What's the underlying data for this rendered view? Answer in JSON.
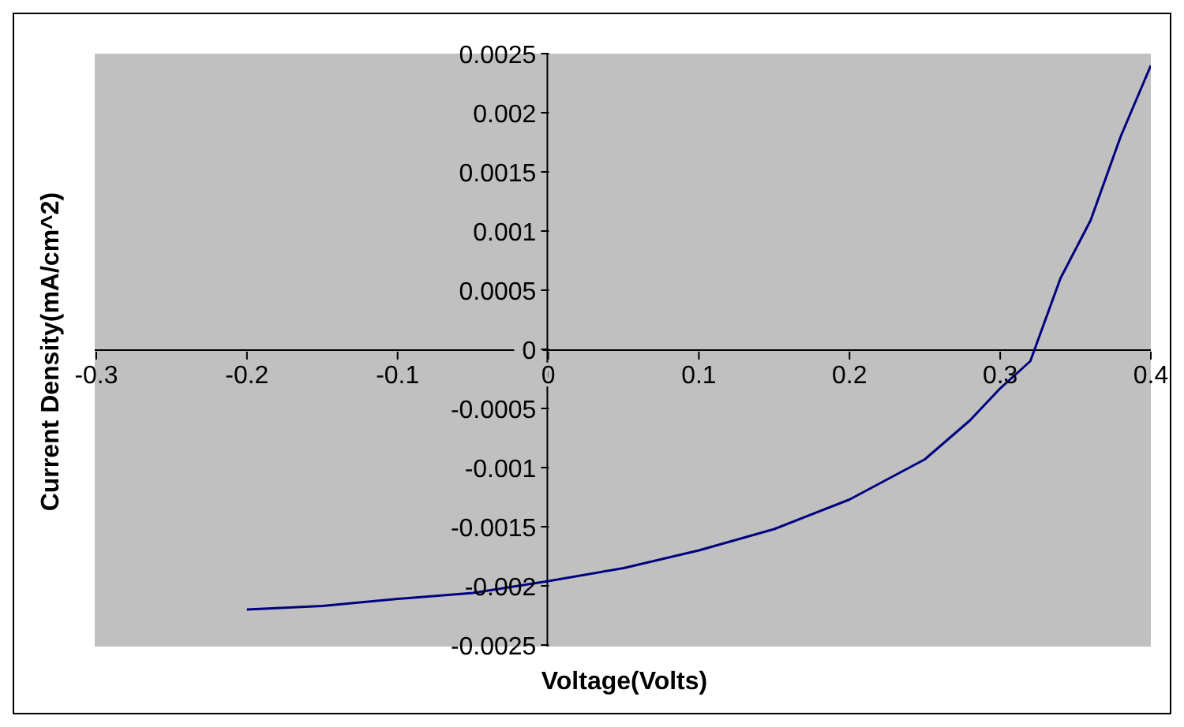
{
  "chart_data": {
    "type": "line",
    "xlabel": "Voltage(Volts)",
    "ylabel": "Current Density(mA/cm^2)",
    "x": [
      -0.2,
      -0.15,
      -0.1,
      -0.05,
      0,
      0.05,
      0.1,
      0.15,
      0.2,
      0.25,
      0.28,
      0.3,
      0.32,
      0.34,
      0.36,
      0.38,
      0.4
    ],
    "series": [
      {
        "color": "#000080",
        "values": [
          -0.0022,
          -0.00217,
          -0.00211,
          -0.00206,
          -0.00196,
          -0.00185,
          -0.0017,
          -0.00152,
          -0.00127,
          -0.00093,
          -0.0006,
          -0.00033,
          -0.0001,
          0.0006,
          0.00109,
          0.0018,
          0.0024
        ]
      }
    ],
    "xlim": [
      -0.3,
      0.4
    ],
    "xticks": [
      -0.3,
      -0.2,
      -0.1,
      0,
      0.1,
      0.2,
      0.3,
      0.4
    ],
    "ylim": [
      -0.0025,
      0.0025
    ],
    "yticks": [
      -0.0025,
      -0.002,
      -0.0015,
      -0.001,
      -0.0005,
      0,
      0.0005,
      0.001,
      0.0015,
      0.002,
      0.0025
    ],
    "grid": false,
    "legend": false,
    "marker": "none",
    "line_style": "solid"
  }
}
